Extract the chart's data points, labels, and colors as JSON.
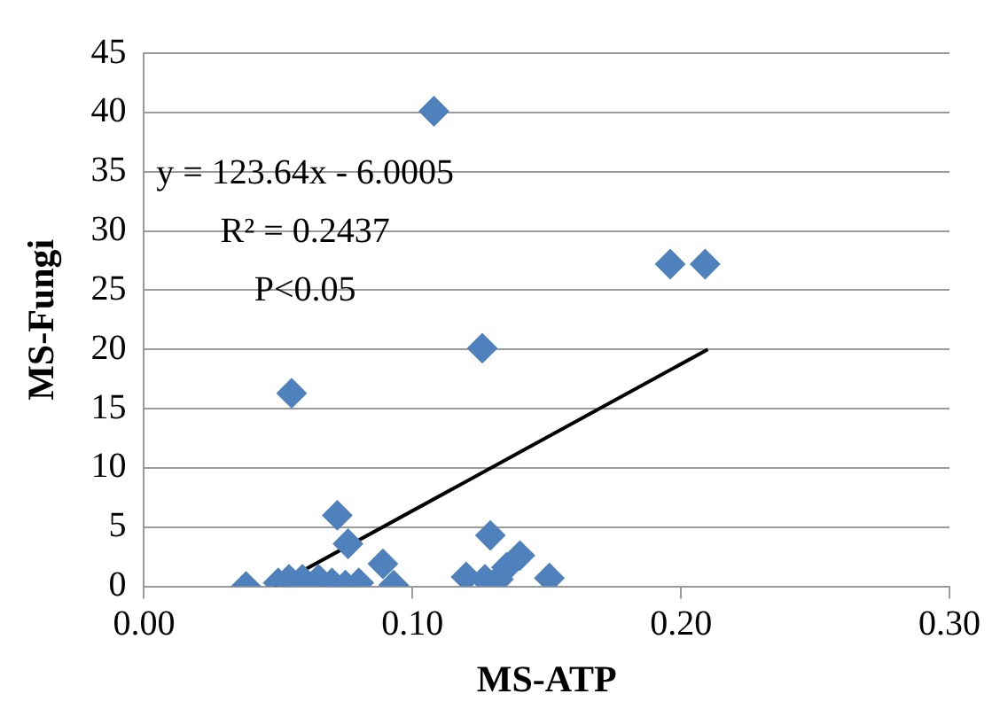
{
  "chart_data": {
    "type": "scatter",
    "xlabel": "MS-ATP",
    "ylabel": "MS-Fungi",
    "x": [
      0.038,
      0.05,
      0.054,
      0.059,
      0.055,
      0.065,
      0.072,
      0.076,
      0.07,
      0.075,
      0.08,
      0.089,
      0.093,
      0.108,
      0.12,
      0.126,
      0.127,
      0.132,
      0.129,
      0.135,
      0.14,
      0.151,
      0.196,
      0.209
    ],
    "series": [
      {
        "color": "#4f81bd",
        "marker": "diamond",
        "values": [
          0,
          0.3,
          0.6,
          0.6,
          16.3,
          0.6,
          6.0,
          3.6,
          0.3,
          0.1,
          0.3,
          1.9,
          0.1,
          40.1,
          0.8,
          20.1,
          0.6,
          0.6,
          4.3,
          1.6,
          2.6,
          0.7,
          27.2,
          27.2
        ]
      },
      {
        "type": "line",
        "color": "#000000",
        "marker": "none",
        "x": [
          0.0485,
          0.21
        ],
        "values": [
          0,
          20
        ]
      }
    ],
    "xlim": [
      0,
      0.3
    ],
    "xticks": [
      {
        "value": 0,
        "label": "0.00"
      },
      {
        "value": 0.1,
        "label": "0.10"
      },
      {
        "value": 0.2,
        "label": "0.20"
      },
      {
        "value": 0.3,
        "label": "0.30"
      }
    ],
    "ylim": [
      0,
      45
    ],
    "yticks": [
      0,
      5,
      10,
      15,
      20,
      25,
      30,
      35,
      40,
      45
    ],
    "grid": "y",
    "legend": false,
    "annotations": [
      "y = 123.64x - 6.0005",
      "R² = 0.2437",
      "P<0.05"
    ]
  }
}
